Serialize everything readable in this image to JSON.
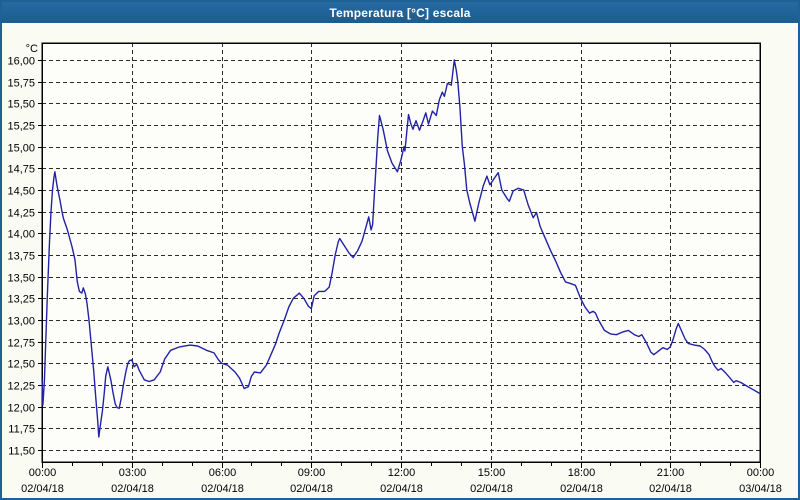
{
  "window": {
    "title": "Temperatura [°C] escala"
  },
  "colors": {
    "frame": "#1F6195",
    "titlebar": "#1F6195",
    "title_text": "#FFFFFF",
    "background": "#FAFCF4",
    "plot_background": "#FDFEFA",
    "grid": "#2B2B2B",
    "axis": "#000000",
    "tick_label": "#000000",
    "line": "#2222A6"
  },
  "chart_data": {
    "type": "line",
    "title": "Temperatura [°C] escala",
    "unit_label": "°C",
    "grid": "dashed-both-axes",
    "legend": "none",
    "ylim": [
      11.5,
      16.0
    ],
    "y_tick_step": 0.25,
    "y_ticks": [
      {
        "value": 16.0,
        "label": "16,00"
      },
      {
        "value": 15.75,
        "label": "15,75"
      },
      {
        "value": 15.5,
        "label": "15,50"
      },
      {
        "value": 15.25,
        "label": "15,25"
      },
      {
        "value": 15.0,
        "label": "15,00"
      },
      {
        "value": 14.75,
        "label": "14,75"
      },
      {
        "value": 14.5,
        "label": "14,50"
      },
      {
        "value": 14.25,
        "label": "14,25"
      },
      {
        "value": 14.0,
        "label": "14,00"
      },
      {
        "value": 13.75,
        "label": "13,75"
      },
      {
        "value": 13.5,
        "label": "13,50"
      },
      {
        "value": 13.25,
        "label": "13,25"
      },
      {
        "value": 13.0,
        "label": "13,00"
      },
      {
        "value": 12.75,
        "label": "12,75"
      },
      {
        "value": 12.5,
        "label": "12,50"
      },
      {
        "value": 12.25,
        "label": "12,25"
      },
      {
        "value": 12.0,
        "label": "12,00"
      },
      {
        "value": 11.75,
        "label": "11,75"
      },
      {
        "value": 11.5,
        "label": "11,50"
      }
    ],
    "x_hours_range": [
      0,
      24
    ],
    "x_minor_tick_hours": 1,
    "x_ticks": [
      {
        "hour": 0,
        "time": "00:00",
        "date": "02/04/18"
      },
      {
        "hour": 3,
        "time": "03:00",
        "date": "02/04/18"
      },
      {
        "hour": 6,
        "time": "06:00",
        "date": "02/04/18"
      },
      {
        "hour": 9,
        "time": "09:00",
        "date": "02/04/18"
      },
      {
        "hour": 12,
        "time": "12:00",
        "date": "02/04/18"
      },
      {
        "hour": 15,
        "time": "15:00",
        "date": "02/04/18"
      },
      {
        "hour": 18,
        "time": "18:00",
        "date": "02/04/18"
      },
      {
        "hour": 21,
        "time": "21:00",
        "date": "02/04/18"
      },
      {
        "hour": 24,
        "time": "00:00",
        "date": "03/04/18"
      }
    ],
    "series": [
      {
        "name": "Temperatura",
        "color": "#2222A6",
        "points": [
          [
            0,
            12.33
          ],
          [
            0.03,
            12.02
          ],
          [
            0.08,
            12.3
          ],
          [
            0.13,
            12.8
          ],
          [
            0.18,
            13.3
          ],
          [
            0.25,
            13.9
          ],
          [
            0.3,
            14.25
          ],
          [
            0.35,
            14.5
          ],
          [
            0.4,
            14.65
          ],
          [
            0.43,
            14.71
          ],
          [
            0.5,
            14.55
          ],
          [
            0.6,
            14.38
          ],
          [
            0.67,
            14.25
          ],
          [
            0.72,
            14.17
          ],
          [
            0.85,
            14.04
          ],
          [
            1,
            13.85
          ],
          [
            1.1,
            13.7
          ],
          [
            1.18,
            13.44
          ],
          [
            1.25,
            13.33
          ],
          [
            1.33,
            13.31
          ],
          [
            1.38,
            13.37
          ],
          [
            1.45,
            13.3
          ],
          [
            1.5,
            13.2
          ],
          [
            1.57,
            13
          ],
          [
            1.65,
            12.7
          ],
          [
            1.73,
            12.4
          ],
          [
            1.8,
            12.1
          ],
          [
            1.86,
            11.85
          ],
          [
            1.9,
            11.65
          ],
          [
            1.95,
            11.78
          ],
          [
            2.02,
            11.95
          ],
          [
            2.08,
            12.15
          ],
          [
            2.13,
            12.35
          ],
          [
            2.2,
            12.46
          ],
          [
            2.3,
            12.31
          ],
          [
            2.38,
            12.15
          ],
          [
            2.45,
            12.03
          ],
          [
            2.51,
            11.99
          ],
          [
            2.58,
            11.98
          ],
          [
            2.65,
            12.1
          ],
          [
            2.72,
            12.25
          ],
          [
            2.8,
            12.4
          ],
          [
            2.87,
            12.5
          ],
          [
            2.92,
            12.53
          ],
          [
            3,
            12.54
          ],
          [
            3.08,
            12.46
          ],
          [
            3.17,
            12.49
          ],
          [
            3.25,
            12.42
          ],
          [
            3.42,
            12.31
          ],
          [
            3.58,
            12.29
          ],
          [
            3.75,
            12.31
          ],
          [
            3.95,
            12.4
          ],
          [
            4.1,
            12.55
          ],
          [
            4.3,
            12.65
          ],
          [
            4.6,
            12.69
          ],
          [
            4.95,
            12.71
          ],
          [
            5.2,
            12.7
          ],
          [
            5.5,
            12.65
          ],
          [
            5.75,
            12.62
          ],
          [
            5.9,
            12.54
          ],
          [
            6,
            12.5
          ],
          [
            6.2,
            12.48
          ],
          [
            6.45,
            12.4
          ],
          [
            6.6,
            12.33
          ],
          [
            6.76,
            12.21
          ],
          [
            6.9,
            12.23
          ],
          [
            7,
            12.35
          ],
          [
            7.1,
            12.4
          ],
          [
            7.3,
            12.39
          ],
          [
            7.5,
            12.48
          ],
          [
            7.65,
            12.6
          ],
          [
            7.8,
            12.72
          ],
          [
            7.93,
            12.85
          ],
          [
            8.1,
            13
          ],
          [
            8.25,
            13.15
          ],
          [
            8.4,
            13.25
          ],
          [
            8.6,
            13.31
          ],
          [
            8.75,
            13.25
          ],
          [
            8.9,
            13.16
          ],
          [
            9,
            13.13
          ],
          [
            9.1,
            13.28
          ],
          [
            9.25,
            13.33
          ],
          [
            9.45,
            13.33
          ],
          [
            9.6,
            13.38
          ],
          [
            9.7,
            13.55
          ],
          [
            9.8,
            13.75
          ],
          [
            9.9,
            13.9
          ],
          [
            9.95,
            13.94
          ],
          [
            10.1,
            13.86
          ],
          [
            10.25,
            13.78
          ],
          [
            10.4,
            13.72
          ],
          [
            10.55,
            13.8
          ],
          [
            10.7,
            13.91
          ],
          [
            10.85,
            14.1
          ],
          [
            10.92,
            14.19
          ],
          [
            11,
            14.04
          ],
          [
            11.05,
            14.1
          ],
          [
            11.1,
            14.4
          ],
          [
            11.17,
            14.8
          ],
          [
            11.22,
            15.1
          ],
          [
            11.28,
            15.36
          ],
          [
            11.4,
            15.2
          ],
          [
            11.55,
            14.95
          ],
          [
            11.7,
            14.81
          ],
          [
            11.88,
            14.71
          ],
          [
            12,
            14.85
          ],
          [
            12.1,
            15
          ],
          [
            12.13,
            14.95
          ],
          [
            12.25,
            15.37
          ],
          [
            12.33,
            15.26
          ],
          [
            12.4,
            15.2
          ],
          [
            12.5,
            15.3
          ],
          [
            12.62,
            15.19
          ],
          [
            12.72,
            15.28
          ],
          [
            12.83,
            15.39
          ],
          [
            12.92,
            15.26
          ],
          [
            13.05,
            15.41
          ],
          [
            13.18,
            15.36
          ],
          [
            13.28,
            15.54
          ],
          [
            13.38,
            15.63
          ],
          [
            13.45,
            15.58
          ],
          [
            13.55,
            15.73
          ],
          [
            13.68,
            15.71
          ],
          [
            13.78,
            16
          ],
          [
            13.85,
            15.88
          ],
          [
            13.9,
            15.75
          ],
          [
            13.97,
            15.46
          ],
          [
            14.05,
            15
          ],
          [
            14.12,
            14.8
          ],
          [
            14.2,
            14.5
          ],
          [
            14.3,
            14.35
          ],
          [
            14.47,
            14.14
          ],
          [
            14.6,
            14.35
          ],
          [
            14.75,
            14.55
          ],
          [
            14.87,
            14.66
          ],
          [
            14.97,
            14.56
          ],
          [
            15.15,
            14.65
          ],
          [
            15.25,
            14.7
          ],
          [
            15.37,
            14.5
          ],
          [
            15.55,
            14.4
          ],
          [
            15.62,
            14.37
          ],
          [
            15.75,
            14.49
          ],
          [
            15.92,
            14.52
          ],
          [
            16.1,
            14.5
          ],
          [
            16.25,
            14.33
          ],
          [
            16.42,
            14.18
          ],
          [
            16.53,
            14.24
          ],
          [
            16.65,
            14.08
          ],
          [
            16.8,
            13.96
          ],
          [
            17,
            13.8
          ],
          [
            17.17,
            13.68
          ],
          [
            17.33,
            13.55
          ],
          [
            17.5,
            13.44
          ],
          [
            17.67,
            13.42
          ],
          [
            17.83,
            13.4
          ],
          [
            18,
            13.25
          ],
          [
            18.15,
            13.15
          ],
          [
            18.3,
            13.08
          ],
          [
            18.42,
            13.1
          ],
          [
            18.5,
            13.08
          ],
          [
            18.6,
            13
          ],
          [
            18.8,
            12.88
          ],
          [
            19,
            12.84
          ],
          [
            19.2,
            12.83
          ],
          [
            19.4,
            12.86
          ],
          [
            19.6,
            12.88
          ],
          [
            19.8,
            12.83
          ],
          [
            19.95,
            12.81
          ],
          [
            20.05,
            12.83
          ],
          [
            20.2,
            12.74
          ],
          [
            20.35,
            12.63
          ],
          [
            20.45,
            12.6
          ],
          [
            20.6,
            12.64
          ],
          [
            20.75,
            12.68
          ],
          [
            20.9,
            12.66
          ],
          [
            21,
            12.69
          ],
          [
            21.1,
            12.78
          ],
          [
            21.2,
            12.9
          ],
          [
            21.27,
            12.96
          ],
          [
            21.37,
            12.88
          ],
          [
            21.5,
            12.78
          ],
          [
            21.6,
            12.73
          ],
          [
            21.8,
            12.71
          ],
          [
            22,
            12.7
          ],
          [
            22.15,
            12.66
          ],
          [
            22.3,
            12.6
          ],
          [
            22.4,
            12.52
          ],
          [
            22.5,
            12.46
          ],
          [
            22.6,
            12.42
          ],
          [
            22.7,
            12.44
          ],
          [
            22.85,
            12.39
          ],
          [
            23,
            12.33
          ],
          [
            23.12,
            12.28
          ],
          [
            23.2,
            12.3
          ],
          [
            23.35,
            12.28
          ],
          [
            23.55,
            12.24
          ],
          [
            23.75,
            12.2
          ],
          [
            23.9,
            12.17
          ],
          [
            24,
            12.15
          ]
        ]
      }
    ]
  }
}
